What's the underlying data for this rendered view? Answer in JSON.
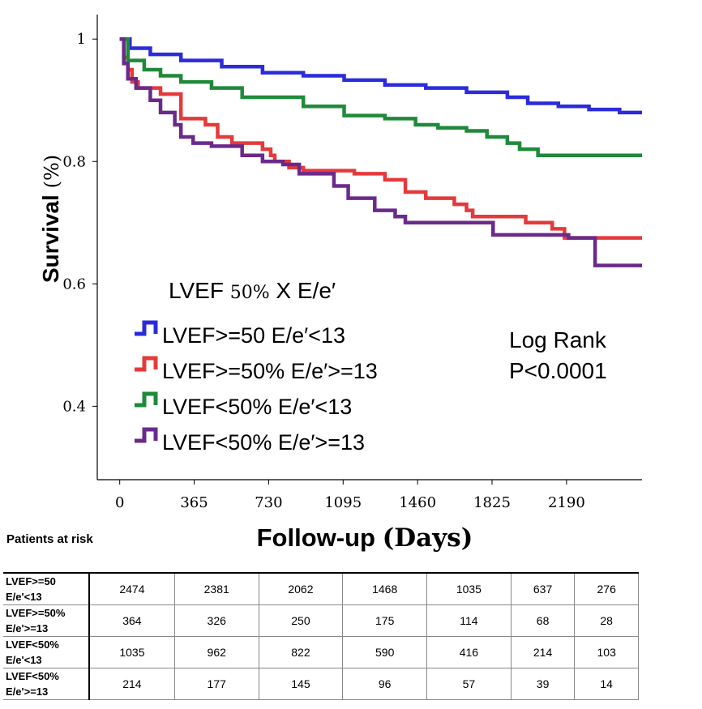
{
  "chart_data": {
    "type": "line",
    "title": "",
    "xlabel": "Follow-up",
    "xlabel_unit": "(Days)",
    "ylabel": "Survival",
    "ylabel_unit": "(%)",
    "xlim": [
      -110,
      2560
    ],
    "ylim": [
      0.28,
      1.04
    ],
    "x_ticks": [
      0,
      365,
      730,
      1095,
      1460,
      1825,
      2190
    ],
    "x_tick_labels": [
      "0",
      "365",
      "730",
      "1095",
      "1460",
      "1825",
      "2190"
    ],
    "y_ticks": [
      1,
      0.8,
      0.6,
      0.4
    ],
    "y_tick_labels": [
      "1",
      "0.8",
      "0.6",
      "0.4"
    ],
    "legend": {
      "title_main": "LVEF",
      "title_small": "50%",
      "title_rest": "X E/e′",
      "placement": "center-left"
    },
    "annotation": {
      "line1": "Log Rank",
      "line2": "P<0.0001"
    },
    "series": [
      {
        "name": "LVEF>=50 E/e′<13",
        "color": "#2b2bdc",
        "x": [
          0,
          50,
          150,
          300,
          500,
          700,
          900,
          1100,
          1300,
          1500,
          1700,
          1900,
          2000,
          2150,
          2300,
          2450,
          2560
        ],
        "y": [
          1.0,
          0.985,
          0.975,
          0.965,
          0.955,
          0.945,
          0.94,
          0.933,
          0.925,
          0.92,
          0.913,
          0.905,
          0.895,
          0.89,
          0.885,
          0.88,
          0.88
        ]
      },
      {
        "name": "LVEF>=50% E/e′>=13",
        "color": "#e53a3a",
        "x": [
          0,
          20,
          40,
          60,
          90,
          200,
          300,
          420,
          480,
          550,
          700,
          740,
          760,
          830,
          900,
          1150,
          1300,
          1400,
          1500,
          1640,
          1700,
          1730,
          1990,
          2120,
          2180,
          2560
        ],
        "y": [
          1.0,
          0.97,
          0.95,
          0.93,
          0.92,
          0.91,
          0.87,
          0.86,
          0.84,
          0.83,
          0.82,
          0.81,
          0.8,
          0.79,
          0.785,
          0.78,
          0.77,
          0.75,
          0.74,
          0.73,
          0.72,
          0.71,
          0.7,
          0.69,
          0.675,
          0.675
        ]
      },
      {
        "name": "LVEF<50% E/e′<13",
        "color": "#1f8a3a",
        "x": [
          0,
          40,
          120,
          200,
          300,
          450,
          600,
          900,
          1100,
          1300,
          1450,
          1560,
          1700,
          1800,
          1900,
          1960,
          2050,
          2200,
          2560
        ],
        "y": [
          1.0,
          0.965,
          0.95,
          0.94,
          0.93,
          0.92,
          0.905,
          0.89,
          0.875,
          0.87,
          0.86,
          0.855,
          0.85,
          0.84,
          0.83,
          0.82,
          0.81,
          0.81,
          0.81
        ]
      },
      {
        "name": "LVEF<50% E/e′>=13",
        "color": "#6b2a8a",
        "x": [
          0,
          20,
          40,
          80,
          150,
          200,
          270,
          300,
          360,
          450,
          600,
          700,
          800,
          880,
          1050,
          1120,
          1250,
          1350,
          1400,
          1830,
          2200,
          2330,
          2560
        ],
        "y": [
          1.0,
          0.96,
          0.935,
          0.92,
          0.9,
          0.88,
          0.86,
          0.84,
          0.83,
          0.825,
          0.81,
          0.8,
          0.795,
          0.78,
          0.76,
          0.74,
          0.72,
          0.71,
          0.7,
          0.68,
          0.675,
          0.63,
          0.63
        ]
      }
    ]
  },
  "risk_table": {
    "title": "Patients at risk",
    "rows": [
      {
        "label_line1": "LVEF>=50",
        "label_line2": "E/e'<13",
        "values": [
          "2474",
          "2381",
          "2062",
          "1468",
          "1035",
          "637",
          "276"
        ]
      },
      {
        "label_line1": "LVEF>=50%",
        "label_line2": "E/e'>=13",
        "values": [
          "364",
          "326",
          "250",
          "175",
          "114",
          "68",
          "28"
        ]
      },
      {
        "label_line1": "LVEF<50%",
        "label_line2": "E/e'<13",
        "values": [
          "1035",
          "962",
          "822",
          "590",
          "416",
          "214",
          "103"
        ]
      },
      {
        "label_line1": "LVEF<50%",
        "label_line2": "E/e'>=13",
        "values": [
          "214",
          "177",
          "145",
          "96",
          "57",
          "39",
          "14"
        ]
      }
    ]
  }
}
